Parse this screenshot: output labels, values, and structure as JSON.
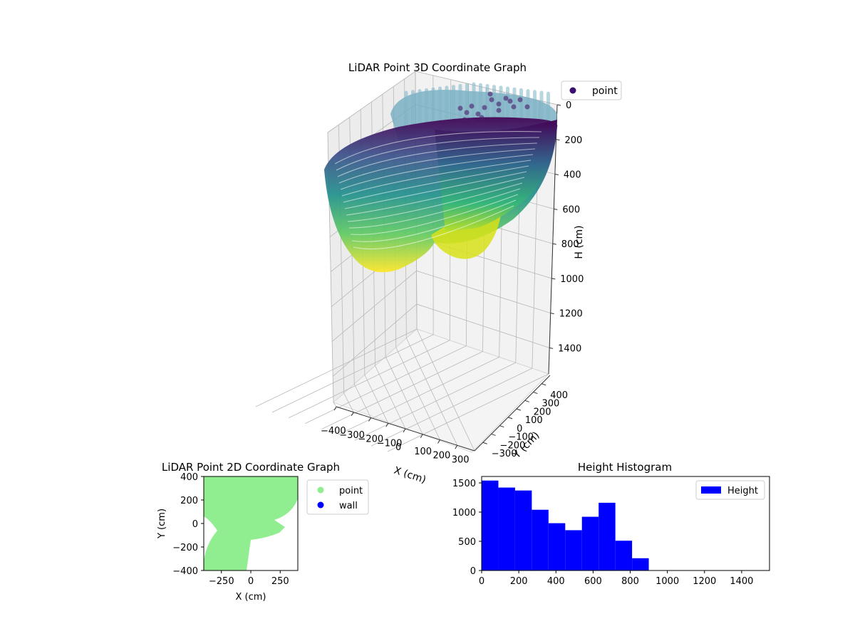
{
  "chart_data": [
    {
      "type": "scatter",
      "projection": "3d",
      "title": "LiDAR Point 3D Coordinate Graph",
      "xlabel": "X (cm)",
      "ylabel": "Y (cm)",
      "zlabel": "H (cm)",
      "x_ticks": [
        "−400",
        "−300",
        "−200",
        "−100",
        "0",
        "100",
        "200",
        "300"
      ],
      "y_ticks": [
        "−300",
        "−200",
        "−100",
        "0",
        "100",
        "200",
        "300",
        "400"
      ],
      "z_ticks": [
        "0",
        "200",
        "400",
        "600",
        "800",
        "1000",
        "1200",
        "1400"
      ],
      "xlim": [
        -400,
        400
      ],
      "ylim": [
        -400,
        400
      ],
      "zlim": [
        0,
        1550
      ],
      "z_inverted": true,
      "colormap": "viridis",
      "grid": true,
      "legend": {
        "position": "top-right",
        "entries": [
          {
            "name": "point",
            "color": "#3b0f70"
          }
        ]
      }
    },
    {
      "type": "scatter",
      "title": "LiDAR Point 2D Coordinate Graph",
      "xlabel": "X (cm)",
      "ylabel": "Y (cm)",
      "x_ticks": [
        "−250",
        "0",
        "250"
      ],
      "y_ticks": [
        "400",
        "200",
        "0",
        "−200",
        "−400"
      ],
      "xlim": [
        -400,
        400
      ],
      "ylim": [
        -400,
        400
      ],
      "series": [
        {
          "name": "point",
          "color": "#90ee90"
        },
        {
          "name": "wall",
          "color": "#0000ff"
        }
      ],
      "legend": {
        "position": "outside-right"
      }
    },
    {
      "type": "bar",
      "title": "Height Histogram",
      "xlabel": "",
      "ylabel": "",
      "x_ticks": [
        "0",
        "200",
        "400",
        "600",
        "800",
        "1000",
        "1200",
        "1400"
      ],
      "y_ticks": [
        "0",
        "500",
        "1000",
        "1500"
      ],
      "xlim": [
        0,
        1550
      ],
      "ylim": [
        0,
        1610
      ],
      "bin_edges": [
        0,
        90,
        180,
        270,
        360,
        450,
        540,
        630,
        720,
        810,
        900
      ],
      "counts": [
        1540,
        1420,
        1370,
        1040,
        810,
        690,
        920,
        1160,
        510,
        210
      ],
      "series": [
        {
          "name": "Height",
          "color": "#0000ff"
        }
      ],
      "legend": {
        "position": "top-right"
      }
    }
  ]
}
